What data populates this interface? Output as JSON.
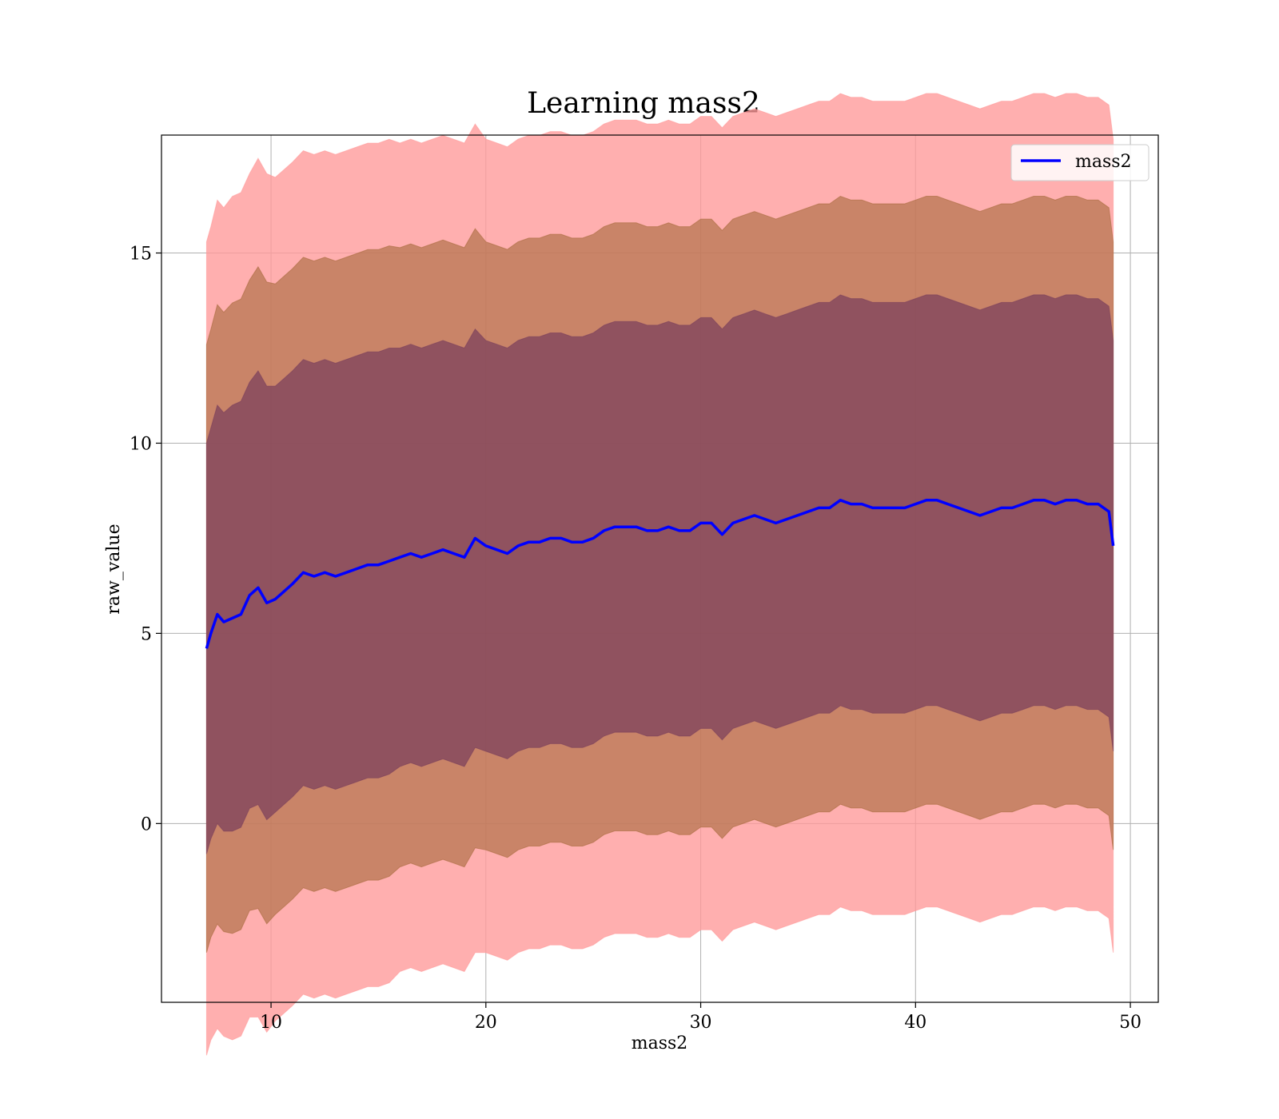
{
  "chart_data": {
    "type": "line",
    "title": "Learning mass2",
    "xlabel": "mass2",
    "ylabel": "raw_value",
    "xlim": [
      4.9,
      51.3
    ],
    "ylim": [
      -4.7,
      18.1
    ],
    "xticks": [
      10,
      20,
      30,
      40,
      50
    ],
    "xtick_labels": [
      "10",
      "20",
      "30",
      "40",
      "50"
    ],
    "yticks": [
      0,
      5,
      10,
      15
    ],
    "ytick_labels": [
      "0",
      "5",
      "10",
      "15"
    ],
    "grid": true,
    "legend": {
      "position": "upper right",
      "entries": [
        "mass2"
      ]
    },
    "colors": {
      "line": "#0000ff",
      "band_1sigma": "#7a3f5c",
      "band_2sigma": "#a86b3e",
      "band_3sigma": "#ff9999",
      "grid": "#b0b0b0"
    },
    "series": [
      {
        "name": "mass2",
        "x": [
          7.0,
          7.2,
          7.5,
          7.8,
          8.2,
          8.6,
          9.0,
          9.4,
          9.8,
          10.2,
          10.6,
          11.0,
          11.5,
          12.0,
          12.5,
          13.0,
          13.5,
          14.0,
          14.5,
          15.0,
          15.5,
          16.0,
          16.5,
          17.0,
          17.5,
          18.0,
          18.5,
          19.0,
          19.5,
          20.0,
          20.5,
          21.0,
          21.5,
          22.0,
          22.5,
          23.0,
          23.5,
          24.0,
          24.5,
          25.0,
          25.5,
          26.0,
          26.5,
          27.0,
          27.5,
          28.0,
          28.5,
          29.0,
          29.5,
          30.0,
          30.5,
          31.0,
          31.5,
          32.0,
          32.5,
          33.0,
          33.5,
          34.0,
          34.5,
          35.0,
          35.5,
          36.0,
          36.5,
          37.0,
          37.5,
          38.0,
          38.5,
          39.0,
          39.5,
          40.0,
          40.5,
          41.0,
          41.5,
          42.0,
          42.5,
          43.0,
          43.5,
          44.0,
          44.5,
          45.0,
          45.5,
          46.0,
          46.5,
          47.0,
          47.5,
          48.0,
          48.5,
          49.0,
          49.2
        ],
        "y": [
          4.6,
          5.0,
          5.5,
          5.3,
          5.4,
          5.5,
          6.0,
          6.2,
          5.8,
          5.9,
          6.1,
          6.3,
          6.6,
          6.5,
          6.6,
          6.5,
          6.6,
          6.7,
          6.8,
          6.8,
          6.9,
          7.0,
          7.1,
          7.0,
          7.1,
          7.2,
          7.1,
          7.0,
          7.5,
          7.3,
          7.2,
          7.1,
          7.3,
          7.4,
          7.4,
          7.5,
          7.5,
          7.4,
          7.4,
          7.5,
          7.7,
          7.8,
          7.8,
          7.8,
          7.7,
          7.7,
          7.8,
          7.7,
          7.7,
          7.9,
          7.9,
          7.6,
          7.9,
          8.0,
          8.1,
          8.0,
          7.9,
          8.0,
          8.1,
          8.2,
          8.3,
          8.3,
          8.5,
          8.4,
          8.4,
          8.3,
          8.3,
          8.3,
          8.3,
          8.4,
          8.5,
          8.5,
          8.4,
          8.3,
          8.2,
          8.1,
          8.2,
          8.3,
          8.3,
          8.4,
          8.5,
          8.5,
          8.4,
          8.5,
          8.5,
          8.4,
          8.4,
          8.2,
          7.3
        ],
        "band_halfwidth_1sigma": [
          5.4,
          5.4,
          5.5,
          5.5,
          5.6,
          5.6,
          5.6,
          5.7,
          5.7,
          5.6,
          5.6,
          5.6,
          5.6,
          5.6,
          5.6,
          5.6,
          5.6,
          5.6,
          5.6,
          5.6,
          5.6,
          5.5,
          5.5,
          5.5,
          5.5,
          5.5,
          5.5,
          5.5,
          5.5,
          5.4,
          5.4,
          5.4,
          5.4,
          5.4,
          5.4,
          5.4,
          5.4,
          5.4,
          5.4,
          5.4,
          5.4,
          5.4,
          5.4,
          5.4,
          5.4,
          5.4,
          5.4,
          5.4,
          5.4,
          5.4,
          5.4,
          5.4,
          5.4,
          5.4,
          5.4,
          5.4,
          5.4,
          5.4,
          5.4,
          5.4,
          5.4,
          5.4,
          5.4,
          5.4,
          5.4,
          5.4,
          5.4,
          5.4,
          5.4,
          5.4,
          5.4,
          5.4,
          5.4,
          5.4,
          5.4,
          5.4,
          5.4,
          5.4,
          5.4,
          5.4,
          5.4,
          5.4,
          5.4,
          5.4,
          5.4,
          5.4,
          5.4,
          5.4,
          5.4
        ]
      }
    ]
  }
}
